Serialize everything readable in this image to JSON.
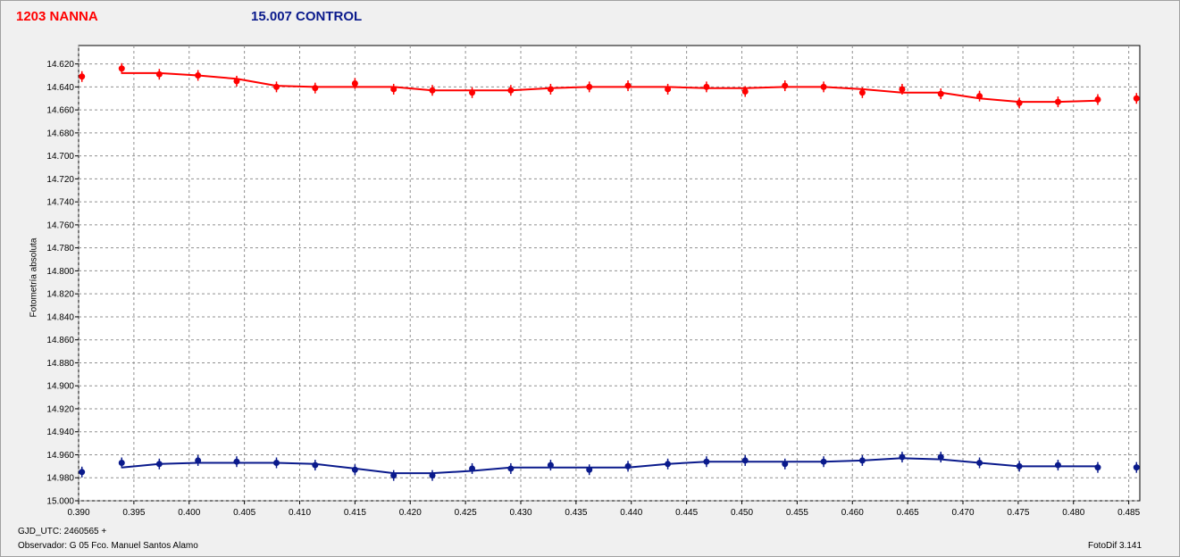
{
  "header": {
    "series1_title": "1203 NANNA",
    "series2_title": "15.007 CONTROL"
  },
  "footer": {
    "gjd": "GJD_UTC: 2460565 +",
    "observer": "Observador: G 05  Fco. Manuel Santos Alamo",
    "software": "FotoDif 3.141"
  },
  "chart_data": {
    "type": "line",
    "ylabel": "Fotometría absoluta",
    "xlim": [
      0.39,
      0.486
    ],
    "ylim": [
      15.0,
      14.604
    ],
    "y_inverted": true,
    "grid": true,
    "x_ticks": [
      "0.390",
      "0.395",
      "0.400",
      "0.405",
      "0.410",
      "0.415",
      "0.420",
      "0.425",
      "0.430",
      "0.435",
      "0.440",
      "0.445",
      "0.450",
      "0.455",
      "0.460",
      "0.465",
      "0.470",
      "0.475",
      "0.480",
      "0.485"
    ],
    "y_ticks": [
      "14.620",
      "14.640",
      "14.660",
      "14.680",
      "14.700",
      "14.720",
      "14.740",
      "14.760",
      "14.780",
      "14.800",
      "14.820",
      "14.840",
      "14.860",
      "14.880",
      "14.900",
      "14.920",
      "14.940",
      "14.960",
      "14.980",
      "15.000"
    ],
    "series": [
      {
        "name": "1203 NANNA",
        "color": "#ff0000",
        "points": [
          [
            0.3903,
            14.631
          ],
          [
            0.3939,
            14.624
          ],
          [
            0.3973,
            14.629
          ],
          [
            0.4008,
            14.63
          ],
          [
            0.4043,
            14.635
          ],
          [
            0.4079,
            14.64
          ],
          [
            0.4114,
            14.641
          ],
          [
            0.415,
            14.637
          ],
          [
            0.4185,
            14.642
          ],
          [
            0.422,
            14.643
          ],
          [
            0.4256,
            14.645
          ],
          [
            0.4291,
            14.643
          ],
          [
            0.4327,
            14.642
          ],
          [
            0.4362,
            14.64
          ],
          [
            0.4397,
            14.639
          ],
          [
            0.4433,
            14.642
          ],
          [
            0.4468,
            14.64
          ],
          [
            0.4503,
            14.644
          ],
          [
            0.4539,
            14.639
          ],
          [
            0.4574,
            14.64
          ],
          [
            0.4609,
            14.645
          ],
          [
            0.4645,
            14.642
          ],
          [
            0.468,
            14.646
          ],
          [
            0.4715,
            14.648
          ],
          [
            0.4751,
            14.654
          ],
          [
            0.4786,
            14.653
          ],
          [
            0.4822,
            14.651
          ],
          [
            0.4857,
            14.65
          ]
        ],
        "line": [
          [
            0.3939,
            14.628
          ],
          [
            0.3973,
            14.628
          ],
          [
            0.4008,
            14.63
          ],
          [
            0.4043,
            14.633
          ],
          [
            0.4079,
            14.639
          ],
          [
            0.4114,
            14.64
          ],
          [
            0.415,
            14.64
          ],
          [
            0.4185,
            14.64
          ],
          [
            0.422,
            14.643
          ],
          [
            0.4256,
            14.643
          ],
          [
            0.4291,
            14.643
          ],
          [
            0.4327,
            14.641
          ],
          [
            0.4362,
            14.64
          ],
          [
            0.4397,
            14.64
          ],
          [
            0.4433,
            14.64
          ],
          [
            0.4468,
            14.641
          ],
          [
            0.4503,
            14.641
          ],
          [
            0.4539,
            14.64
          ],
          [
            0.4574,
            14.64
          ],
          [
            0.4609,
            14.642
          ],
          [
            0.4645,
            14.645
          ],
          [
            0.468,
            14.645
          ],
          [
            0.4715,
            14.65
          ],
          [
            0.4751,
            14.653
          ],
          [
            0.4786,
            14.653
          ],
          [
            0.4822,
            14.652
          ]
        ]
      },
      {
        "name": "15.007 CONTROL",
        "color": "#0a1a8c",
        "points": [
          [
            0.3903,
            14.975
          ],
          [
            0.3939,
            14.967
          ],
          [
            0.3973,
            14.968
          ],
          [
            0.4008,
            14.965
          ],
          [
            0.4043,
            14.966
          ],
          [
            0.4079,
            14.967
          ],
          [
            0.4114,
            14.969
          ],
          [
            0.415,
            14.973
          ],
          [
            0.4185,
            14.978
          ],
          [
            0.422,
            14.978
          ],
          [
            0.4256,
            14.972
          ],
          [
            0.4291,
            14.972
          ],
          [
            0.4327,
            14.969
          ],
          [
            0.4362,
            14.973
          ],
          [
            0.4397,
            14.97
          ],
          [
            0.4433,
            14.968
          ],
          [
            0.4468,
            14.966
          ],
          [
            0.4503,
            14.965
          ],
          [
            0.4539,
            14.968
          ],
          [
            0.4574,
            14.966
          ],
          [
            0.4609,
            14.965
          ],
          [
            0.4645,
            14.962
          ],
          [
            0.468,
            14.962
          ],
          [
            0.4715,
            14.967
          ],
          [
            0.4751,
            14.97
          ],
          [
            0.4786,
            14.969
          ],
          [
            0.4822,
            14.971
          ],
          [
            0.4857,
            14.971
          ]
        ],
        "line": [
          [
            0.3939,
            14.971
          ],
          [
            0.3973,
            14.968
          ],
          [
            0.4008,
            14.967
          ],
          [
            0.4043,
            14.967
          ],
          [
            0.4079,
            14.967
          ],
          [
            0.4114,
            14.968
          ],
          [
            0.415,
            14.972
          ],
          [
            0.4185,
            14.976
          ],
          [
            0.422,
            14.976
          ],
          [
            0.4256,
            14.974
          ],
          [
            0.4291,
            14.971
          ],
          [
            0.4327,
            14.971
          ],
          [
            0.4362,
            14.971
          ],
          [
            0.4397,
            14.971
          ],
          [
            0.4433,
            14.968
          ],
          [
            0.4468,
            14.966
          ],
          [
            0.4503,
            14.966
          ],
          [
            0.4539,
            14.966
          ],
          [
            0.4574,
            14.966
          ],
          [
            0.4609,
            14.965
          ],
          [
            0.4645,
            14.963
          ],
          [
            0.468,
            14.964
          ],
          [
            0.4715,
            14.967
          ],
          [
            0.4751,
            14.97
          ],
          [
            0.4786,
            14.97
          ],
          [
            0.4822,
            14.97
          ]
        ]
      }
    ]
  }
}
